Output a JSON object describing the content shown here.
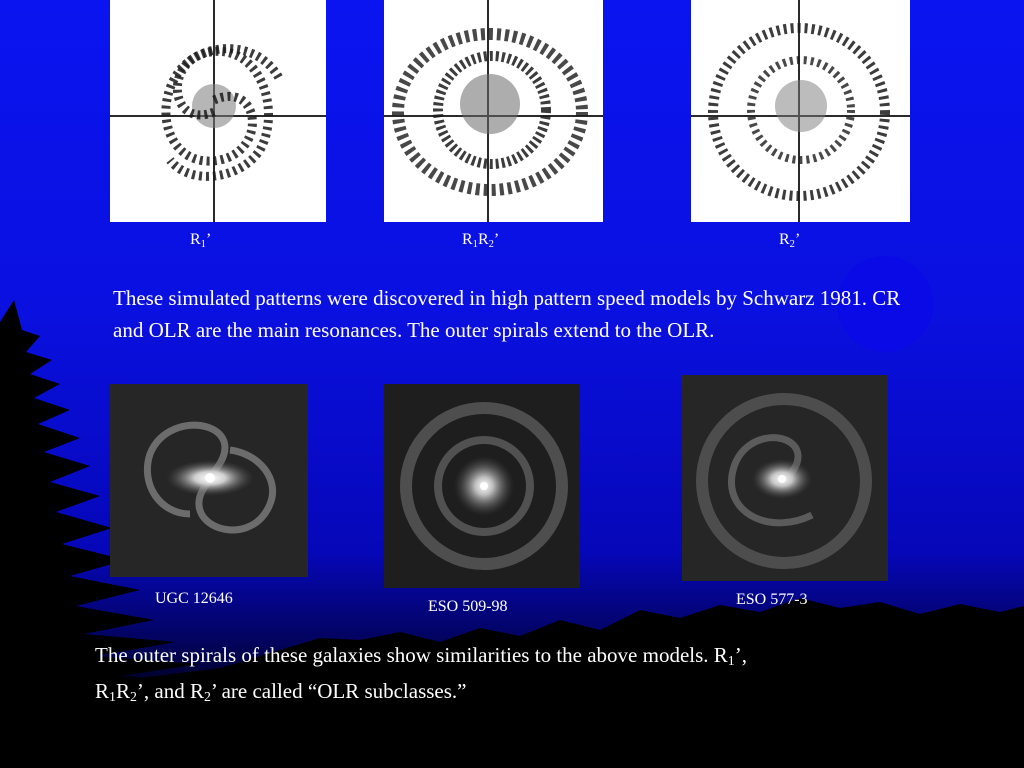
{
  "simulation_labels": {
    "r1_main": "R",
    "r1_sub": "1",
    "r1_tail": "’",
    "r1r2_a": "R",
    "r1r2_a_sub": "1",
    "r1r2_b": "R",
    "r1r2_b_sub": "2",
    "r1r2_tail": "’",
    "r2_main": "R",
    "r2_sub": "2",
    "r2_tail": "’"
  },
  "paragraph_top": "These simulated patterns were discovered in high pattern speed models by Schwarz 1981. CR and OLR are the main resonances. The outer spirals extend to the OLR.",
  "galaxy_labels": {
    "g1": "UGC 12646",
    "g2": "ESO 509-98",
    "g3": "ESO 577-3"
  },
  "paragraph_bottom": {
    "s1": "The outer spirals of these galaxies show similarities to the above models. R",
    "s1_sub": "1",
    "s2": "’, ",
    "s3": "R",
    "s3_sub": "1",
    "s4": "R",
    "s4_sub": "2",
    "s5": "’, and R",
    "s5_sub": "2",
    "s6": "’ are called “OLR subclasses.”"
  },
  "colors": {
    "background_top": "#0a14f0",
    "background_bottom": "#000000",
    "text": "#ffffff",
    "circle": "#0a0ae6"
  }
}
